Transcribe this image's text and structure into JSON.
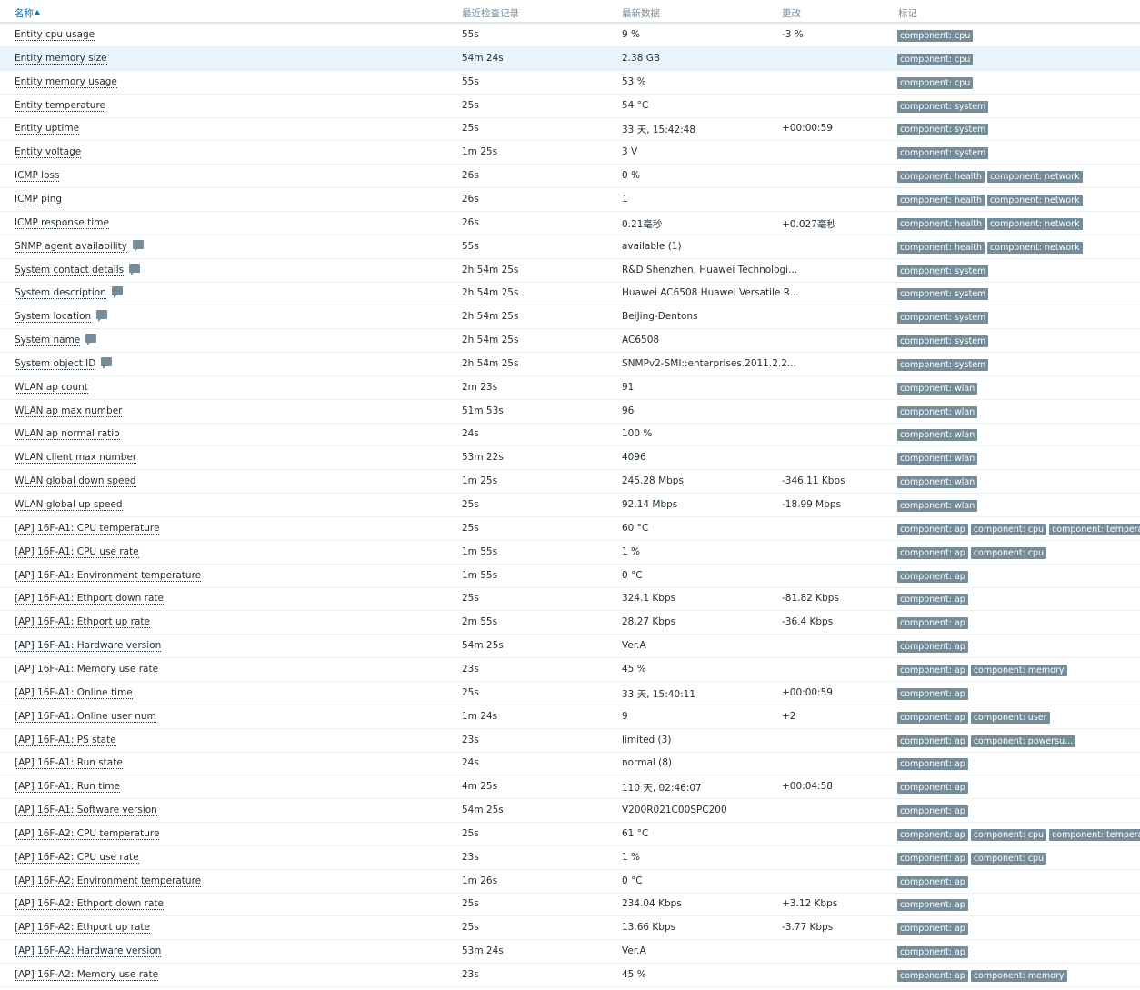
{
  "table": {
    "headers": [
      "名称",
      "最近检查记录",
      "最新数据",
      "更改",
      "标记"
    ],
    "rows": [
      {
        "name": "Entity cpu usage",
        "last": "55s",
        "value": "9 %",
        "change": "-3 %",
        "tags": [
          "component: cpu"
        ]
      },
      {
        "name": "Entity memory size",
        "last": "54m 24s",
        "value": "2.38 GB",
        "tags": [
          "component: cpu"
        ]
      },
      {
        "name": "Entity memory usage",
        "last": "55s",
        "value": "53 %",
        "tags": [
          "component: cpu"
        ]
      },
      {
        "name": "Entity temperature",
        "last": "25s",
        "value": "54 °C",
        "tags": [
          "component: system"
        ]
      },
      {
        "name": "Entity uptime",
        "last": "25s",
        "value": "33 天, 15:42:48",
        "change": "+00:00:59",
        "tags": [
          "component: system"
        ]
      },
      {
        "name": "Entity voltage",
        "last": "1m 25s",
        "value": "3 V",
        "tags": [
          "component: system"
        ]
      },
      {
        "name": "ICMP loss",
        "last": "26s",
        "value": "0 %",
        "tags": [
          "component: health",
          "component: network"
        ]
      },
      {
        "name": "ICMP ping",
        "last": "26s",
        "value": "1",
        "tags": [
          "component: health",
          "component: network"
        ]
      },
      {
        "name": "ICMP response time",
        "last": "26s",
        "value": "0.21毫秒",
        "change": "+0.027毫秒",
        "tags": [
          "component: health",
          "component: network"
        ]
      },
      {
        "name": "SNMP agent availability",
        "hint": true,
        "last": "55s",
        "value": "available (1)",
        "tags": [
          "component: health",
          "component: network"
        ]
      },
      {
        "name": "System contact details",
        "hint": true,
        "last": "2h 54m 25s",
        "value": "R&D Shenzhen, Huawei Technologi...",
        "tags": [
          "component: system"
        ]
      },
      {
        "name": "System description",
        "hint": true,
        "last": "2h 54m 25s",
        "value": "Huawei AC6508 Huawei Versatile R...",
        "tags": [
          "component: system"
        ]
      },
      {
        "name": "System location",
        "hint": true,
        "last": "2h 54m 25s",
        "value": "BeiJing-Dentons",
        "tags": [
          "component: system"
        ]
      },
      {
        "name": "System name",
        "hint": true,
        "last": "2h 54m 25s",
        "value": "AC6508",
        "tags": [
          "component: system"
        ]
      },
      {
        "name": "System object ID",
        "hint": true,
        "last": "2h 54m 25s",
        "value": "SNMPv2-SMI::enterprises.2011.2.2...",
        "tags": [
          "component: system"
        ]
      },
      {
        "name": "WLAN ap count",
        "last": "2m 23s",
        "value": "91",
        "tags": [
          "component: wlan"
        ]
      },
      {
        "name": "WLAN ap max number",
        "last": "51m 53s",
        "value": "96",
        "tags": [
          "component: wlan"
        ]
      },
      {
        "name": "WLAN ap normal ratio",
        "last": "24s",
        "value": "100 %",
        "tags": [
          "component: wlan"
        ]
      },
      {
        "name": "WLAN client max number",
        "last": "53m 22s",
        "value": "4096",
        "tags": [
          "component: wlan"
        ]
      },
      {
        "name": "WLAN global down speed",
        "last": "1m 25s",
        "value": "245.28 Mbps",
        "change": "-346.11 Kbps",
        "tags": [
          "component: wlan"
        ]
      },
      {
        "name": "WLAN global up speed",
        "last": "25s",
        "value": "92.14 Mbps",
        "change": "-18.99 Mbps",
        "tags": [
          "component: wlan"
        ]
      },
      {
        "name": "[AP] 16F-A1: CPU temperature",
        "last": "25s",
        "value": "60 °C",
        "tags": [
          "component: ap",
          "component: cpu",
          "component: temperat..."
        ]
      },
      {
        "name": "[AP] 16F-A1: CPU use rate",
        "last": "1m 55s",
        "value": "1 %",
        "tags": [
          "component: ap",
          "component: cpu"
        ]
      },
      {
        "name": "[AP] 16F-A1: Environment temperature",
        "last": "1m 55s",
        "value": "0 °C",
        "tags": [
          "component: ap"
        ]
      },
      {
        "name": "[AP] 16F-A1: Ethport down rate",
        "last": "25s",
        "value": "324.1 Kbps",
        "change": "-81.82 Kbps",
        "tags": [
          "component: ap"
        ]
      },
      {
        "name": "[AP] 16F-A1: Ethport up rate",
        "last": "2m 55s",
        "value": "28.27 Kbps",
        "change": "-36.4 Kbps",
        "tags": [
          "component: ap"
        ]
      },
      {
        "name": "[AP] 16F-A1: Hardware version",
        "last": "54m 25s",
        "value": "Ver.A",
        "tags": [
          "component: ap"
        ]
      },
      {
        "name": "[AP] 16F-A1: Memory use rate",
        "last": "23s",
        "value": "45 %",
        "tags": [
          "component: ap",
          "component: memory"
        ]
      },
      {
        "name": "[AP] 16F-A1: Online time",
        "last": "25s",
        "value": "33 天, 15:40:11",
        "change": "+00:00:59",
        "tags": [
          "component: ap"
        ]
      },
      {
        "name": "[AP] 16F-A1: Online user num",
        "last": "1m 24s",
        "value": "9",
        "change": "+2",
        "tags": [
          "component: ap",
          "component: user"
        ]
      },
      {
        "name": "[AP] 16F-A1: PS state",
        "last": "23s",
        "value": "limited (3)",
        "tags": [
          "component: ap",
          "component: powersu..."
        ]
      },
      {
        "name": "[AP] 16F-A1: Run state",
        "last": "24s",
        "value": "normal (8)",
        "tags": [
          "component: ap"
        ]
      },
      {
        "name": "[AP] 16F-A1: Run time",
        "last": "4m 25s",
        "value": "110 天, 02:46:07",
        "change": "+00:04:58",
        "tags": [
          "component: ap"
        ]
      },
      {
        "name": "[AP] 16F-A1: Software version",
        "last": "54m 25s",
        "value": "V200R021C00SPC200",
        "tags": [
          "component: ap"
        ]
      },
      {
        "name": "[AP] 16F-A2: CPU temperature",
        "last": "25s",
        "value": "61 °C",
        "tags": [
          "component: ap",
          "component: cpu",
          "component: temperat..."
        ]
      },
      {
        "name": "[AP] 16F-A2: CPU use rate",
        "last": "23s",
        "value": "1 %",
        "tags": [
          "component: ap",
          "component: cpu"
        ]
      },
      {
        "name": "[AP] 16F-A2: Environment temperature",
        "last": "1m 26s",
        "value": "0 °C",
        "tags": [
          "component: ap"
        ]
      },
      {
        "name": "[AP] 16F-A2: Ethport down rate",
        "last": "25s",
        "value": "234.04 Kbps",
        "change": "+3.12 Kbps",
        "tags": [
          "component: ap"
        ]
      },
      {
        "name": "[AP] 16F-A2: Ethport up rate",
        "last": "25s",
        "value": "13.66 Kbps",
        "change": "-3.77 Kbps",
        "tags": [
          "component: ap"
        ]
      },
      {
        "name": "[AP] 16F-A2: Hardware version",
        "last": "53m 24s",
        "value": "Ver.A",
        "tags": [
          "component: ap"
        ]
      },
      {
        "name": "[AP] 16F-A2: Memory use rate",
        "last": "23s",
        "value": "45 %",
        "tags": [
          "component: ap",
          "component: memory"
        ]
      }
    ],
    "highlight": 1
  }
}
